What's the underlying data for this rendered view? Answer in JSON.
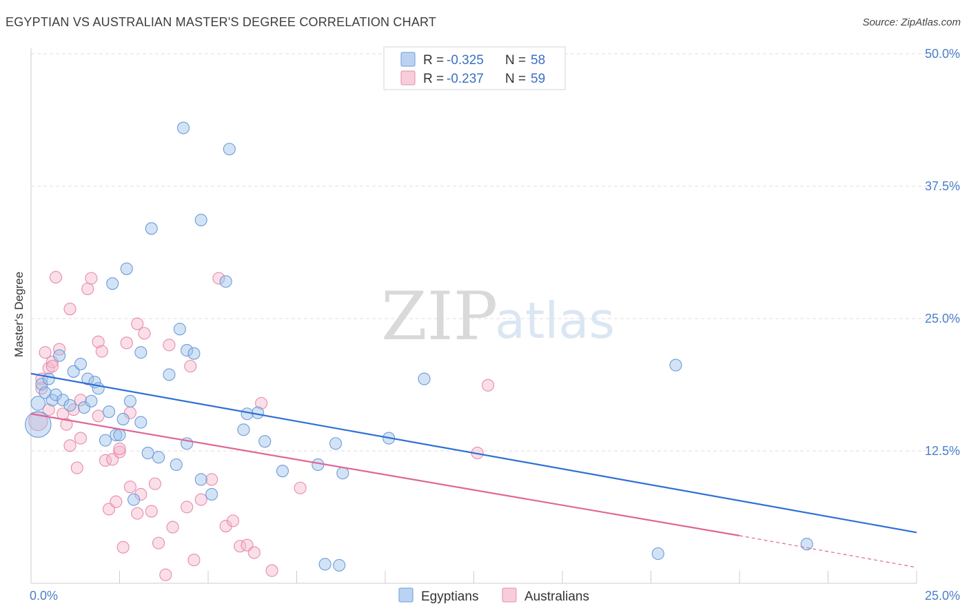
{
  "title": "EGYPTIAN VS AUSTRALIAN MASTER'S DEGREE CORRELATION CHART",
  "source": "Source: ZipAtlas.com",
  "watermark": {
    "zip": "ZIP",
    "atlas": "atlas"
  },
  "colors": {
    "egyptians": "#9ec1ec",
    "egyptians_stroke": "#6b9bd8",
    "egyptians_line": "#2e6fd4",
    "australians": "#f5b8cb",
    "australians_stroke": "#e88aa8",
    "australians_line": "#e06595",
    "grid": "#dddddd",
    "tick_text": "#4a7ec9"
  },
  "legend": {
    "rows": [
      {
        "r_label": "R = ",
        "r_value": "-0.325",
        "n_label": "N = ",
        "n_value": "58"
      },
      {
        "r_label": "R = ",
        "r_value": "-0.237",
        "n_label": "N = ",
        "n_value": "59"
      }
    ]
  },
  "chart_data": {
    "type": "scatter",
    "title": "EGYPTIAN VS AUSTRALIAN MASTER'S DEGREE CORRELATION CHART",
    "xlabel": "",
    "ylabel": "Master's Degree",
    "xlim": [
      0,
      25
    ],
    "ylim": [
      0,
      50
    ],
    "x_tick_labels": [
      "0.0%",
      "25.0%"
    ],
    "y_ticks": [
      12.5,
      25.0,
      37.5,
      50.0
    ],
    "y_tick_labels": [
      "12.5%",
      "25.0%",
      "37.5%",
      "50.0%"
    ],
    "grid": true,
    "legend_position": "top-center",
    "series": [
      {
        "name": "Egyptians",
        "r": -0.325,
        "n": 58,
        "trend": {
          "x0": 0,
          "y0": 19.8,
          "x1": 25,
          "y1": 4.8
        },
        "points": [
          [
            0.2,
            15.0,
            2.2
          ],
          [
            0.2,
            17.0,
            1.2
          ],
          [
            0.3,
            18.8,
            1
          ],
          [
            0.4,
            18.0,
            1
          ],
          [
            0.5,
            19.3,
            1
          ],
          [
            0.6,
            17.3,
            1
          ],
          [
            0.7,
            17.8,
            1
          ],
          [
            0.8,
            21.5,
            1
          ],
          [
            0.9,
            17.3,
            1
          ],
          [
            1.1,
            16.8,
            1
          ],
          [
            1.2,
            20.0,
            1
          ],
          [
            1.4,
            20.7,
            1
          ],
          [
            1.5,
            16.6,
            1
          ],
          [
            1.6,
            19.3,
            1
          ],
          [
            1.7,
            17.2,
            1
          ],
          [
            1.8,
            19.0,
            1
          ],
          [
            1.9,
            18.4,
            1
          ],
          [
            2.1,
            13.5,
            1
          ],
          [
            2.2,
            16.2,
            1
          ],
          [
            2.3,
            28.3,
            1
          ],
          [
            2.4,
            14.0,
            1
          ],
          [
            2.5,
            14.0,
            1
          ],
          [
            2.6,
            15.5,
            1
          ],
          [
            2.7,
            29.7,
            1
          ],
          [
            2.8,
            17.2,
            1
          ],
          [
            2.9,
            7.9,
            1
          ],
          [
            3.1,
            15.2,
            1
          ],
          [
            3.1,
            21.8,
            1
          ],
          [
            3.3,
            12.3,
            1
          ],
          [
            3.4,
            33.5,
            1
          ],
          [
            3.6,
            11.9,
            1
          ],
          [
            3.9,
            19.7,
            1
          ],
          [
            4.1,
            11.2,
            1
          ],
          [
            4.2,
            24.0,
            1
          ],
          [
            4.3,
            43.0,
            1
          ],
          [
            4.4,
            13.2,
            1
          ],
          [
            4.4,
            22.0,
            1
          ],
          [
            4.6,
            21.7,
            1
          ],
          [
            4.8,
            9.8,
            1
          ],
          [
            4.8,
            34.3,
            1
          ],
          [
            5.1,
            8.4,
            1
          ],
          [
            5.5,
            28.5,
            1
          ],
          [
            5.6,
            41.0,
            1
          ],
          [
            6.0,
            14.5,
            1
          ],
          [
            6.1,
            16.0,
            1
          ],
          [
            6.4,
            16.1,
            1
          ],
          [
            6.6,
            13.4,
            1
          ],
          [
            7.1,
            10.6,
            1
          ],
          [
            8.1,
            11.2,
            1
          ],
          [
            8.3,
            1.8,
            1
          ],
          [
            8.6,
            13.2,
            1
          ],
          [
            8.7,
            1.7,
            1
          ],
          [
            8.8,
            10.4,
            1
          ],
          [
            10.1,
            13.7,
            1
          ],
          [
            11.1,
            19.3,
            1
          ],
          [
            17.7,
            2.8,
            1
          ],
          [
            18.2,
            20.6,
            1
          ],
          [
            21.9,
            3.7,
            1
          ]
        ]
      },
      {
        "name": "Australians",
        "r": -0.237,
        "n": 59,
        "trend": {
          "x0": 0,
          "y0": 16.0,
          "x1": 20,
          "y1": 4.5
        },
        "trend_dashed": {
          "x0": 20,
          "y0": 4.5,
          "x1": 25,
          "y1": 1.5
        },
        "points": [
          [
            0.2,
            15.3,
            1.6
          ],
          [
            0.3,
            19.3,
            1
          ],
          [
            0.3,
            18.4,
            1
          ],
          [
            0.4,
            21.8,
            1
          ],
          [
            0.5,
            20.3,
            1
          ],
          [
            0.5,
            16.4,
            1
          ],
          [
            0.6,
            20.9,
            1
          ],
          [
            0.6,
            20.5,
            1
          ],
          [
            0.7,
            28.9,
            1
          ],
          [
            0.8,
            22.1,
            1
          ],
          [
            0.9,
            16.0,
            1
          ],
          [
            1.0,
            15.0,
            1
          ],
          [
            1.1,
            13.0,
            1
          ],
          [
            1.1,
            25.9,
            1
          ],
          [
            1.2,
            16.4,
            1
          ],
          [
            1.3,
            10.9,
            1
          ],
          [
            1.4,
            13.7,
            1
          ],
          [
            1.4,
            17.3,
            1
          ],
          [
            1.6,
            27.8,
            1
          ],
          [
            1.7,
            28.8,
            1
          ],
          [
            1.9,
            22.8,
            1
          ],
          [
            1.9,
            15.8,
            1
          ],
          [
            2.0,
            21.9,
            1
          ],
          [
            2.1,
            11.6,
            1
          ],
          [
            2.2,
            7.0,
            1
          ],
          [
            2.3,
            11.7,
            1
          ],
          [
            2.4,
            7.7,
            1
          ],
          [
            2.5,
            12.4,
            1
          ],
          [
            2.5,
            12.7,
            1
          ],
          [
            2.6,
            3.4,
            1
          ],
          [
            2.7,
            22.7,
            1
          ],
          [
            2.8,
            16.1,
            1
          ],
          [
            2.8,
            9.1,
            1
          ],
          [
            3.0,
            6.6,
            1
          ],
          [
            3.0,
            24.5,
            1
          ],
          [
            3.1,
            8.4,
            1
          ],
          [
            3.2,
            23.6,
            1
          ],
          [
            3.4,
            6.8,
            1
          ],
          [
            3.5,
            9.4,
            1
          ],
          [
            3.6,
            3.8,
            1
          ],
          [
            3.8,
            0.8,
            1
          ],
          [
            3.9,
            22.5,
            1
          ],
          [
            4.0,
            5.3,
            1
          ],
          [
            4.4,
            7.2,
            1
          ],
          [
            4.5,
            20.5,
            1
          ],
          [
            4.6,
            2.2,
            1
          ],
          [
            4.8,
            7.9,
            1
          ],
          [
            5.1,
            9.8,
            1
          ],
          [
            5.3,
            28.8,
            1
          ],
          [
            5.5,
            5.4,
            1
          ],
          [
            5.7,
            5.9,
            1
          ],
          [
            5.9,
            3.5,
            1
          ],
          [
            6.1,
            3.6,
            1
          ],
          [
            6.3,
            2.9,
            1
          ],
          [
            6.5,
            17.0,
            1
          ],
          [
            6.8,
            1.2,
            1
          ],
          [
            7.6,
            9.0,
            1
          ],
          [
            12.6,
            12.3,
            1
          ],
          [
            12.9,
            18.7,
            1
          ]
        ]
      }
    ]
  },
  "bottom_legend": {
    "items": [
      "Egyptians",
      "Australians"
    ]
  }
}
